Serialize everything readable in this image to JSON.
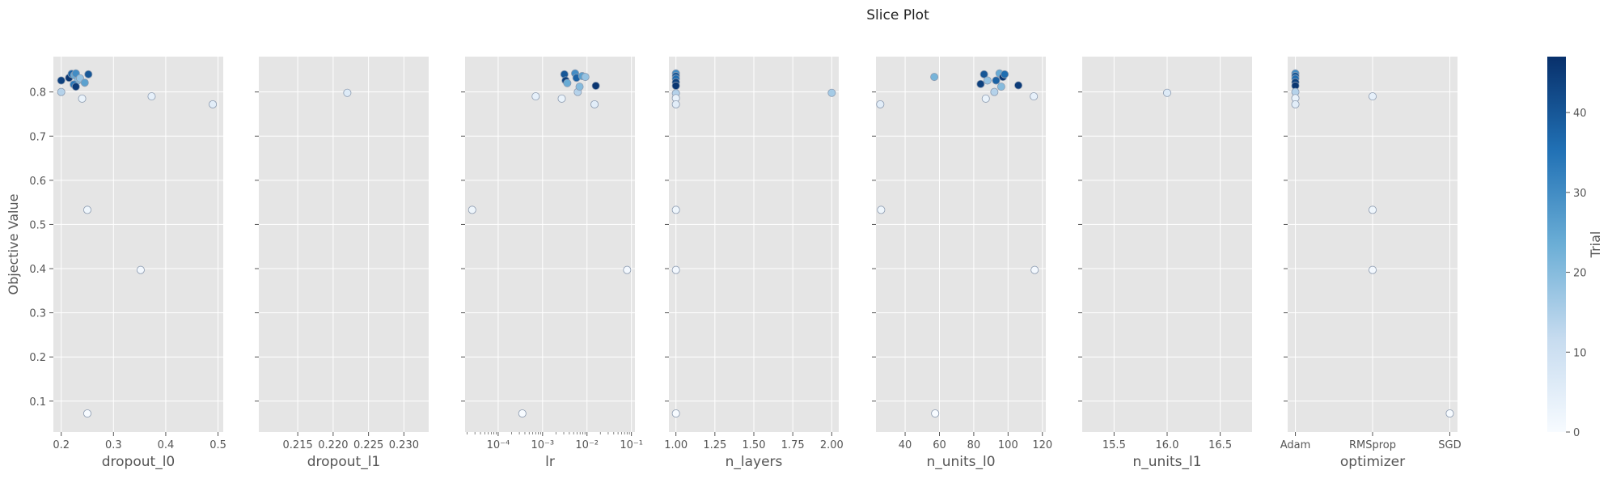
{
  "title": "Slice Plot",
  "ylabel": "Objective Value",
  "colorbar_label": "Trial",
  "colors": {
    "panel_bg": "#e5e5e5",
    "grid": "#ffffff",
    "text": "#555555",
    "marker_edge": "#8c9bb0",
    "cmap_low": "#f7fbff",
    "cmap_mid": "#6baed6",
    "cmap_high": "#08306b"
  },
  "chart_data": {
    "type": "scatter",
    "title": "Slice Plot",
    "ylabel": "Objective Value",
    "ylim": [
      0.03,
      0.88
    ],
    "yticks": [
      "0.1",
      "0.2",
      "0.3",
      "0.4",
      "0.5",
      "0.6",
      "0.7",
      "0.8"
    ],
    "colorbar": {
      "label": "Trial",
      "range": [
        0,
        47
      ],
      "ticks": [
        "0",
        "10",
        "20",
        "30",
        "40"
      ]
    },
    "grid": true,
    "panels": [
      {
        "xlabel": "dropout_l0",
        "scale": "linear",
        "xlim": [
          0.185,
          0.51
        ],
        "xticks": [
          [
            "0.2",
            0.2
          ],
          [
            "0.3",
            0.3
          ],
          [
            "0.4",
            0.4
          ],
          [
            "0.5",
            0.5
          ]
        ],
        "points": [
          {
            "x": 0.2,
            "y": 0.826,
            "trial": 44
          },
          {
            "x": 0.2,
            "y": 0.8,
            "trial": 14
          },
          {
            "x": 0.215,
            "y": 0.832,
            "trial": 46
          },
          {
            "x": 0.22,
            "y": 0.841,
            "trial": 38
          },
          {
            "x": 0.225,
            "y": 0.838,
            "trial": 24
          },
          {
            "x": 0.228,
            "y": 0.842,
            "trial": 30
          },
          {
            "x": 0.232,
            "y": 0.826,
            "trial": 20
          },
          {
            "x": 0.224,
            "y": 0.817,
            "trial": 34
          },
          {
            "x": 0.228,
            "y": 0.812,
            "trial": 45
          },
          {
            "x": 0.236,
            "y": 0.831,
            "trial": 18
          },
          {
            "x": 0.245,
            "y": 0.821,
            "trial": 26
          },
          {
            "x": 0.24,
            "y": 0.785,
            "trial": 3
          },
          {
            "x": 0.252,
            "y": 0.84,
            "trial": 40
          },
          {
            "x": 0.25,
            "y": 0.533,
            "trial": 2
          },
          {
            "x": 0.25,
            "y": 0.072,
            "trial": 0
          },
          {
            "x": 0.352,
            "y": 0.397,
            "trial": 1
          },
          {
            "x": 0.373,
            "y": 0.79,
            "trial": 4
          },
          {
            "x": 0.49,
            "y": 0.772,
            "trial": 5
          }
        ]
      },
      {
        "xlabel": "dropout_l1",
        "scale": "linear",
        "xlim": [
          0.2095,
          0.2335
        ],
        "xticks": [
          [
            "0.215",
            0.215
          ],
          [
            "0.220",
            0.22
          ],
          [
            "0.225",
            0.225
          ],
          [
            "0.230",
            0.23
          ]
        ],
        "points": [
          {
            "x": 0.222,
            "y": 0.798,
            "trial": 6
          }
        ]
      },
      {
        "xlabel": "lr",
        "scale": "log",
        "xlim": [
          1.8e-05,
          0.12
        ],
        "xticks": [
          [
            "10⁻⁴",
            0.0001
          ],
          [
            "10⁻³",
            0.001
          ],
          [
            "10⁻²",
            0.01
          ],
          [
            "10⁻¹",
            0.1
          ]
        ],
        "points": [
          {
            "x": 2.6e-05,
            "y": 0.533,
            "trial": 2
          },
          {
            "x": 0.00035,
            "y": 0.072,
            "trial": 0
          },
          {
            "x": 0.0007,
            "y": 0.79,
            "trial": 4
          },
          {
            "x": 0.0027,
            "y": 0.785,
            "trial": 3
          },
          {
            "x": 0.0031,
            "y": 0.84,
            "trial": 40
          },
          {
            "x": 0.0033,
            "y": 0.826,
            "trial": 44
          },
          {
            "x": 0.0036,
            "y": 0.82,
            "trial": 24
          },
          {
            "x": 0.0054,
            "y": 0.842,
            "trial": 30
          },
          {
            "x": 0.0058,
            "y": 0.832,
            "trial": 38
          },
          {
            "x": 0.0062,
            "y": 0.8,
            "trial": 14
          },
          {
            "x": 0.0068,
            "y": 0.812,
            "trial": 20
          },
          {
            "x": 0.0078,
            "y": 0.836,
            "trial": 26
          },
          {
            "x": 0.0092,
            "y": 0.834,
            "trial": 18
          },
          {
            "x": 0.0148,
            "y": 0.772,
            "trial": 5
          },
          {
            "x": 0.0158,
            "y": 0.814,
            "trial": 46
          },
          {
            "x": 0.08,
            "y": 0.397,
            "trial": 1
          }
        ]
      },
      {
        "xlabel": "n_layers",
        "scale": "linear",
        "xlim": [
          0.955,
          2.045
        ],
        "xticks": [
          [
            "1.00",
            1.0
          ],
          [
            "1.25",
            1.25
          ],
          [
            "1.50",
            1.5
          ],
          [
            "1.75",
            1.75
          ],
          [
            "2.00",
            2.0
          ]
        ],
        "points": [
          {
            "x": 1.0,
            "y": 0.842,
            "trial": 30
          },
          {
            "x": 1.0,
            "y": 0.836,
            "trial": 40
          },
          {
            "x": 1.0,
            "y": 0.83,
            "trial": 36
          },
          {
            "x": 1.0,
            "y": 0.822,
            "trial": 44
          },
          {
            "x": 1.0,
            "y": 0.814,
            "trial": 46
          },
          {
            "x": 1.0,
            "y": 0.797,
            "trial": 14
          },
          {
            "x": 1.0,
            "y": 0.786,
            "trial": 3
          },
          {
            "x": 1.0,
            "y": 0.772,
            "trial": 5
          },
          {
            "x": 1.0,
            "y": 0.533,
            "trial": 2
          },
          {
            "x": 1.0,
            "y": 0.397,
            "trial": 1
          },
          {
            "x": 1.0,
            "y": 0.072,
            "trial": 0
          },
          {
            "x": 2.0,
            "y": 0.798,
            "trial": 16
          }
        ]
      },
      {
        "xlabel": "n_units_l0",
        "scale": "linear",
        "xlim": [
          23,
          122
        ],
        "xticks": [
          [
            "40",
            40
          ],
          [
            "60",
            60
          ],
          [
            "80",
            80
          ],
          [
            "100",
            100
          ],
          [
            "120",
            120
          ]
        ],
        "points": [
          {
            "x": 25.5,
            "y": 0.772,
            "trial": 5
          },
          {
            "x": 26,
            "y": 0.533,
            "trial": 2
          },
          {
            "x": 57,
            "y": 0.834,
            "trial": 22
          },
          {
            "x": 57.5,
            "y": 0.072,
            "trial": 0
          },
          {
            "x": 84,
            "y": 0.818,
            "trial": 44
          },
          {
            "x": 86,
            "y": 0.84,
            "trial": 40
          },
          {
            "x": 87,
            "y": 0.785,
            "trial": 3
          },
          {
            "x": 88,
            "y": 0.826,
            "trial": 18
          },
          {
            "x": 92,
            "y": 0.8,
            "trial": 14
          },
          {
            "x": 93,
            "y": 0.826,
            "trial": 38
          },
          {
            "x": 95,
            "y": 0.842,
            "trial": 24
          },
          {
            "x": 96,
            "y": 0.812,
            "trial": 20
          },
          {
            "x": 97,
            "y": 0.834,
            "trial": 46
          },
          {
            "x": 98,
            "y": 0.84,
            "trial": 36
          },
          {
            "x": 106,
            "y": 0.815,
            "trial": 45
          },
          {
            "x": 115,
            "y": 0.79,
            "trial": 4
          },
          {
            "x": 115.5,
            "y": 0.397,
            "trial": 1
          }
        ]
      },
      {
        "xlabel": "n_units_l1",
        "scale": "linear",
        "xlim": [
          15.2,
          16.8
        ],
        "xticks": [
          [
            "15.5",
            15.5
          ],
          [
            "16.0",
            16.0
          ],
          [
            "16.5",
            16.5
          ]
        ],
        "points": [
          {
            "x": 16.0,
            "y": 0.798,
            "trial": 6
          }
        ]
      },
      {
        "xlabel": "optimizer",
        "scale": "categorical",
        "xlim": [
          -0.1,
          2.1
        ],
        "xticks": [
          [
            "Adam",
            0
          ],
          [
            "RMSprop",
            1
          ],
          [
            "SGD",
            2
          ]
        ],
        "points": [
          {
            "x": 0,
            "y": 0.842,
            "trial": 30
          },
          {
            "x": 0,
            "y": 0.836,
            "trial": 40
          },
          {
            "x": 0,
            "y": 0.83,
            "trial": 36
          },
          {
            "x": 0,
            "y": 0.822,
            "trial": 44
          },
          {
            "x": 0,
            "y": 0.814,
            "trial": 46
          },
          {
            "x": 0,
            "y": 0.8,
            "trial": 14
          },
          {
            "x": 0,
            "y": 0.786,
            "trial": 3
          },
          {
            "x": 0,
            "y": 0.772,
            "trial": 5
          },
          {
            "x": 1,
            "y": 0.79,
            "trial": 4
          },
          {
            "x": 1,
            "y": 0.533,
            "trial": 2
          },
          {
            "x": 1,
            "y": 0.397,
            "trial": 1
          },
          {
            "x": 2,
            "y": 0.072,
            "trial": 0
          }
        ]
      }
    ]
  }
}
